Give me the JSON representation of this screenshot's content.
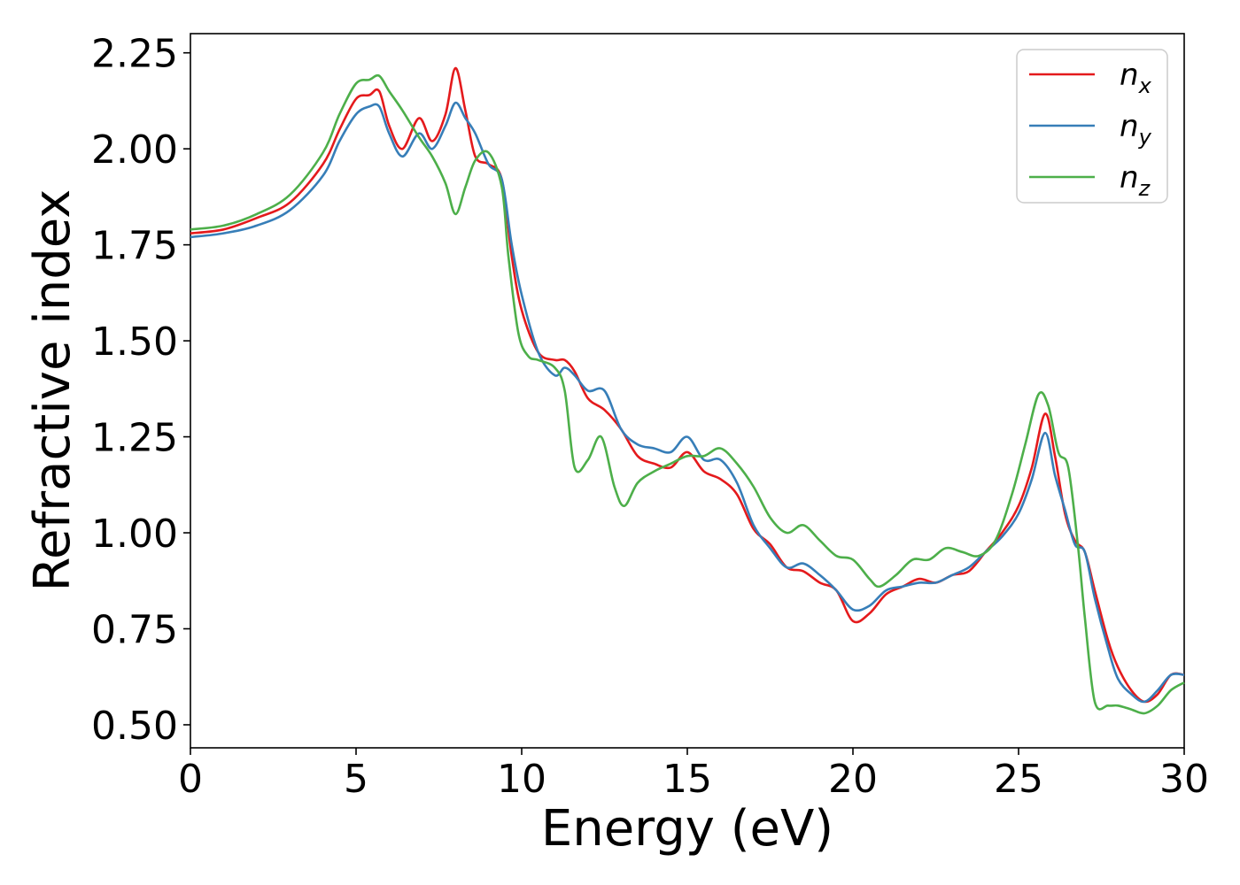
{
  "chart_data": {
    "type": "line",
    "title": "",
    "xlabel": "Energy (eV)",
    "ylabel": "Refractive index",
    "xlim": [
      0,
      30
    ],
    "ylim": [
      0.44,
      2.3
    ],
    "xticks": [
      0,
      5,
      10,
      15,
      20,
      25,
      30
    ],
    "xtick_labels": [
      "0",
      "5",
      "10",
      "15",
      "20",
      "25",
      "30"
    ],
    "yticks": [
      0.5,
      0.75,
      1.0,
      1.25,
      1.5,
      1.75,
      2.0,
      2.25
    ],
    "ytick_labels": [
      "0.50",
      "0.75",
      "1.00",
      "1.25",
      "1.50",
      "1.75",
      "2.00",
      "2.25"
    ],
    "grid": false,
    "legend_position": "top-right",
    "series": [
      {
        "name": "n_x",
        "label_base": "n",
        "label_sub": "x",
        "color": "#e41a1c",
        "x": [
          0,
          1,
          2,
          3,
          4,
          4.5,
          5,
          5.4,
          5.7,
          6.0,
          6.4,
          6.9,
          7.3,
          7.7,
          8.0,
          8.3,
          8.6,
          9.0,
          9.4,
          9.7,
          10.0,
          10.5,
          11.0,
          11.3,
          11.6,
          12.0,
          12.5,
          13.0,
          13.5,
          14.0,
          14.5,
          15.0,
          15.5,
          16.0,
          16.5,
          17.0,
          17.5,
          18.0,
          18.5,
          19.0,
          19.5,
          20.0,
          20.5,
          21.0,
          21.5,
          22.0,
          22.5,
          23.0,
          23.5,
          24.0,
          24.5,
          25.0,
          25.4,
          25.8,
          26.1,
          26.4,
          26.7,
          27.0,
          27.3,
          27.7,
          28.0,
          28.4,
          28.8,
          29.2,
          29.6,
          30.0
        ],
        "y": [
          1.78,
          1.79,
          1.82,
          1.86,
          1.96,
          2.05,
          2.13,
          2.14,
          2.15,
          2.06,
          2.0,
          2.08,
          2.02,
          2.09,
          2.21,
          2.1,
          1.98,
          1.96,
          1.92,
          1.72,
          1.58,
          1.47,
          1.45,
          1.45,
          1.42,
          1.35,
          1.32,
          1.27,
          1.2,
          1.18,
          1.17,
          1.21,
          1.16,
          1.14,
          1.1,
          1.01,
          0.97,
          0.91,
          0.9,
          0.87,
          0.85,
          0.77,
          0.79,
          0.84,
          0.86,
          0.88,
          0.87,
          0.89,
          0.9,
          0.95,
          1.0,
          1.07,
          1.17,
          1.31,
          1.2,
          1.05,
          0.98,
          0.95,
          0.85,
          0.72,
          0.65,
          0.59,
          0.56,
          0.58,
          0.63,
          0.63
        ]
      },
      {
        "name": "n_y",
        "label_base": "n",
        "label_sub": "y",
        "color": "#377eb8",
        "x": [
          0,
          1,
          2,
          3,
          4,
          4.5,
          5,
          5.4,
          5.7,
          6.0,
          6.4,
          6.9,
          7.3,
          7.7,
          8.0,
          8.3,
          8.6,
          9.0,
          9.4,
          9.7,
          10.0,
          10.5,
          11.0,
          11.3,
          11.6,
          12.0,
          12.5,
          13.0,
          13.5,
          14.0,
          14.5,
          15.0,
          15.5,
          16.0,
          16.5,
          17.0,
          17.5,
          18.0,
          18.5,
          19.0,
          19.5,
          20.0,
          20.5,
          21.0,
          21.5,
          22.0,
          22.5,
          23.0,
          23.5,
          24.0,
          24.5,
          25.0,
          25.4,
          25.8,
          26.1,
          26.4,
          26.7,
          27.0,
          27.3,
          27.7,
          28.0,
          28.4,
          28.8,
          29.2,
          29.6,
          30.0
        ],
        "y": [
          1.77,
          1.78,
          1.8,
          1.84,
          1.93,
          2.02,
          2.09,
          2.11,
          2.11,
          2.04,
          1.98,
          2.04,
          2.0,
          2.06,
          2.12,
          2.08,
          2.04,
          1.96,
          1.92,
          1.75,
          1.62,
          1.47,
          1.41,
          1.43,
          1.41,
          1.37,
          1.37,
          1.27,
          1.23,
          1.22,
          1.21,
          1.25,
          1.19,
          1.19,
          1.13,
          1.02,
          0.96,
          0.91,
          0.92,
          0.89,
          0.85,
          0.8,
          0.81,
          0.85,
          0.86,
          0.87,
          0.87,
          0.89,
          0.91,
          0.95,
          0.99,
          1.05,
          1.14,
          1.26,
          1.15,
          1.06,
          0.97,
          0.95,
          0.83,
          0.7,
          0.62,
          0.58,
          0.56,
          0.59,
          0.63,
          0.63
        ]
      },
      {
        "name": "n_z",
        "label_base": "n",
        "label_sub": "z",
        "color": "#4daf4a",
        "x": [
          0,
          1,
          2,
          3,
          4,
          4.5,
          5,
          5.4,
          5.7,
          6.0,
          6.4,
          6.9,
          7.3,
          7.7,
          8.0,
          8.3,
          8.6,
          9.0,
          9.4,
          9.6,
          9.9,
          10.2,
          10.5,
          11.0,
          11.3,
          11.6,
          12.0,
          12.4,
          12.8,
          13.1,
          13.5,
          14.0,
          14.5,
          15.0,
          15.5,
          16.0,
          16.5,
          17.0,
          17.5,
          18.0,
          18.5,
          19.0,
          19.5,
          20.0,
          20.5,
          20.8,
          21.3,
          21.8,
          22.3,
          22.8,
          23.3,
          23.8,
          24.3,
          24.8,
          25.2,
          25.6,
          25.9,
          26.2,
          26.5,
          26.8,
          27.0,
          27.3,
          27.7,
          28.0,
          28.4,
          28.8,
          29.2,
          29.6,
          30.0
        ],
        "y": [
          1.79,
          1.8,
          1.83,
          1.88,
          1.99,
          2.09,
          2.17,
          2.18,
          2.19,
          2.15,
          2.1,
          2.03,
          1.98,
          1.91,
          1.83,
          1.9,
          1.97,
          1.99,
          1.9,
          1.72,
          1.52,
          1.46,
          1.45,
          1.43,
          1.37,
          1.17,
          1.19,
          1.25,
          1.12,
          1.07,
          1.13,
          1.16,
          1.18,
          1.2,
          1.2,
          1.22,
          1.18,
          1.12,
          1.04,
          1.0,
          1.02,
          0.98,
          0.94,
          0.93,
          0.88,
          0.86,
          0.89,
          0.93,
          0.93,
          0.96,
          0.95,
          0.94,
          0.98,
          1.1,
          1.23,
          1.36,
          1.33,
          1.21,
          1.17,
          0.96,
          0.78,
          0.56,
          0.55,
          0.55,
          0.54,
          0.53,
          0.55,
          0.59,
          0.61
        ]
      }
    ]
  }
}
